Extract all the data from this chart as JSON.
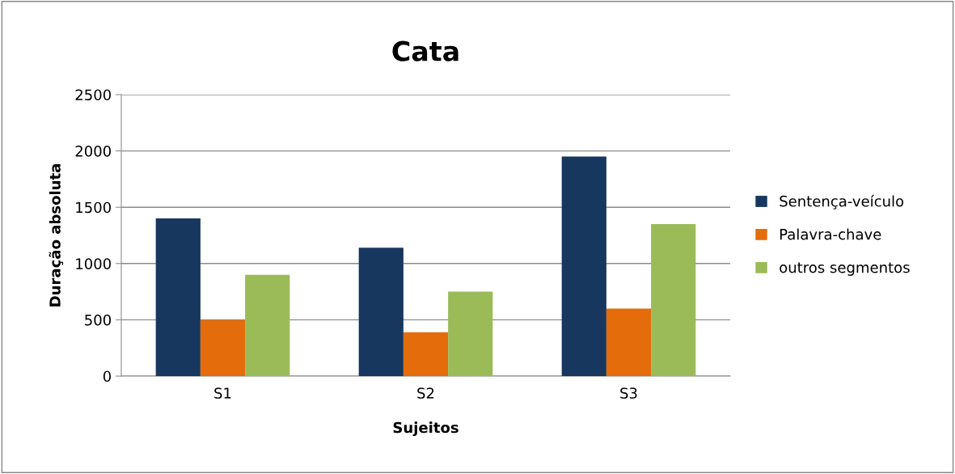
{
  "chart_data": {
    "type": "bar",
    "title": "Cata",
    "xlabel": "Sujeitos",
    "ylabel": "Duração absoluta",
    "categories": [
      "S1",
      "S2",
      "S3"
    ],
    "series": [
      {
        "name": "Sentença-veículo",
        "color": "#17375e",
        "values": [
          1400,
          1140,
          1950
        ]
      },
      {
        "name": "Palavra-chave",
        "color": "#e46c0a",
        "values": [
          500,
          390,
          600
        ]
      },
      {
        "name": "outros segmentos",
        "color": "#9bbb59",
        "values": [
          900,
          750,
          1350
        ]
      }
    ],
    "ylim": [
      0,
      2500
    ],
    "yticks": [
      0,
      500,
      1000,
      1500,
      2000,
      2500
    ],
    "grid": "y",
    "legend": "right"
  }
}
